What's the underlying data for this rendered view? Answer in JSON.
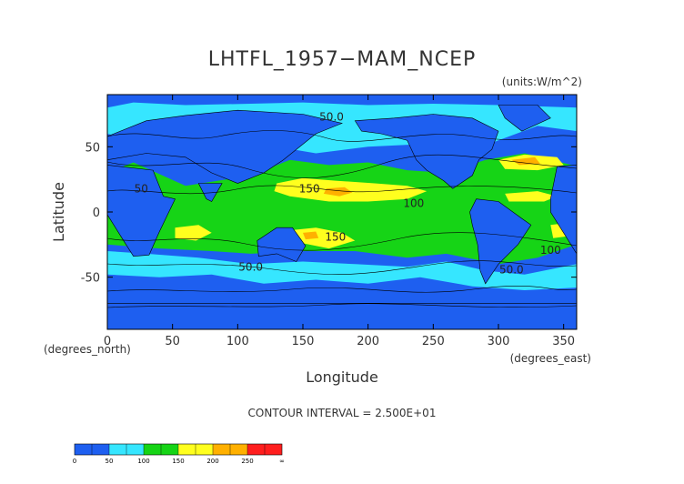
{
  "chart_data": {
    "type": "heatmap",
    "title": "LHTFL_1957−MAM_NCEP",
    "units": "(units:W/m^2)",
    "xlabel": "Longitude",
    "ylabel": "Latitude",
    "x_unit_label": "(degrees_east)",
    "y_unit_label": "(degrees_north)",
    "xlim": [
      0,
      360
    ],
    "ylim": [
      -90,
      90
    ],
    "x_ticks": [
      0,
      50,
      100,
      150,
      200,
      250,
      300,
      350
    ],
    "y_ticks": [
      -50,
      0,
      50
    ],
    "contour_interval": "CONTOUR INTERVAL = 2.500E+01",
    "colorbar": {
      "levels": [
        0,
        25,
        50,
        75,
        100,
        125,
        150,
        175,
        200,
        225,
        250,
        275,
        300
      ],
      "labels": [
        "0",
        "50",
        "100",
        "150",
        "200",
        "250",
        "∞"
      ],
      "colors": [
        "#1e5ff0",
        "#1e5ff0",
        "#36e6ff",
        "#36e6ff",
        "#16d416",
        "#16d416",
        "#ffff1e",
        "#ffff1e",
        "#ffb000",
        "#ffb000",
        "#ff1e1e",
        "#ff1e1e"
      ]
    },
    "contour_labels": [
      "50.0",
      "150",
      "100",
      "150",
      "50",
      "100",
      "50.0",
      "50.0"
    ],
    "colors": {
      "land": "#1e5ff0",
      "low": "#36e6ff",
      "mid": "#16d416",
      "high": "#ffff1e",
      "higher": "#ffb000",
      "top": "#ff1e1e",
      "coast": "#000000"
    }
  }
}
